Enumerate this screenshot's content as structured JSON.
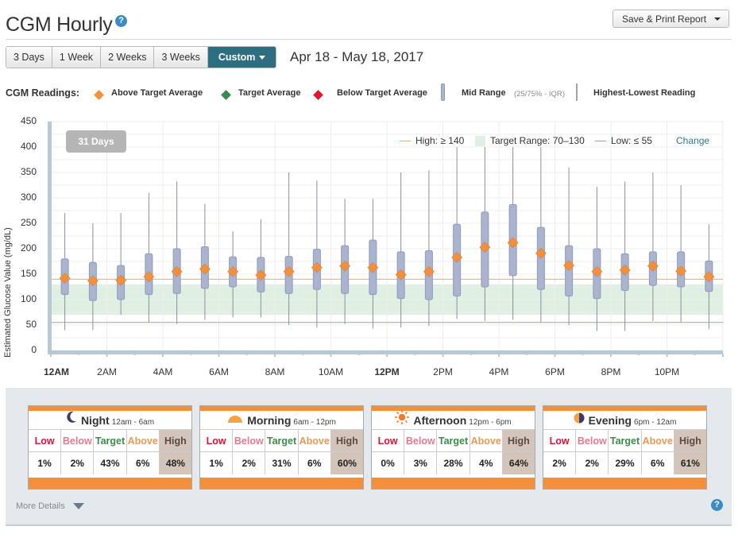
{
  "header": {
    "title": "CGM Hourly",
    "help_icon": "?",
    "print_button_label": "Save & Print Report",
    "date_range": "Apr 18 - May 18, 2017"
  },
  "range_tabs": [
    {
      "label": "3 Days",
      "active": false
    },
    {
      "label": "1 Week",
      "active": false
    },
    {
      "label": "2 Weeks",
      "active": false
    },
    {
      "label": "3 Weeks",
      "active": false
    },
    {
      "label": "Custom",
      "active": true
    }
  ],
  "readings_legend": {
    "title": "CGM Readings:",
    "above": "Above Target Average",
    "target": "Target Average",
    "below": "Below Target Average",
    "mid_range": "Mid Range",
    "mid_range_note": "(25/75% - IQR)",
    "high_low": "Highest-Lowest Reading"
  },
  "chart_overlay": {
    "days_badge": "31 Days",
    "high_label": "High: ≥ 140",
    "target_label": "Target Range: 70–130",
    "low_label": "Low: ≤ 55",
    "change_link": "Change"
  },
  "colors": {
    "above_marker": "#f4903b",
    "target_marker": "#3a8a4e",
    "below_marker": "#e0172e",
    "iqr_box": "#aab4cf",
    "target_band": "#dff0e3",
    "accent": "#2f6e80"
  },
  "chart_data": {
    "type": "box",
    "ylabel": "Estimated Glucose Value (mg/dL)",
    "ylim": [
      0,
      450
    ],
    "y_ticks": [
      "0",
      "50",
      "100",
      "150",
      "200",
      "250",
      "300",
      "350",
      "400",
      "450"
    ],
    "x_ticks": [
      "12AM",
      "2AM",
      "4AM",
      "6AM",
      "8AM",
      "10AM",
      "12PM",
      "2PM",
      "4PM",
      "6PM",
      "8PM",
      "10PM"
    ],
    "bold_x_ticks": [
      "12AM",
      "12PM"
    ],
    "high_threshold": 140,
    "target_range": [
      70,
      130
    ],
    "low_threshold": 55,
    "grid": true,
    "hours": [
      0,
      1,
      2,
      3,
      4,
      5,
      6,
      7,
      8,
      9,
      10,
      11,
      12,
      13,
      14,
      15,
      16,
      17,
      18,
      19,
      20,
      21,
      22,
      23
    ],
    "min": [
      40,
      40,
      70,
      55,
      52,
      60,
      65,
      65,
      50,
      45,
      52,
      43,
      45,
      48,
      62,
      58,
      60,
      55,
      50,
      38,
      38,
      58,
      55,
      42
    ],
    "q1": [
      110,
      98,
      100,
      110,
      112,
      122,
      125,
      115,
      112,
      120,
      112,
      110,
      102,
      100,
      107,
      125,
      147,
      120,
      107,
      102,
      118,
      128,
      125,
      116
    ],
    "avg": [
      142,
      137,
      138,
      145,
      155,
      160,
      155,
      148,
      155,
      163,
      166,
      163,
      149,
      155,
      183,
      203,
      212,
      191,
      167,
      155,
      158,
      166,
      156,
      145
    ],
    "q3": [
      180,
      173,
      167,
      190,
      200,
      204,
      184,
      183,
      185,
      199,
      206,
      217,
      194,
      196,
      248,
      272,
      287,
      242,
      206,
      200,
      190,
      194,
      194,
      176
    ],
    "max": [
      270,
      250,
      270,
      310,
      332,
      288,
      234,
      258,
      350,
      334,
      298,
      298,
      350,
      354,
      400,
      400,
      400,
      400,
      360,
      322,
      332,
      350,
      325,
      248
    ]
  },
  "periods": [
    {
      "name": "Night",
      "hours": "12am - 6am",
      "icon": "moon-icon",
      "low": "1%",
      "below": "2%",
      "target": "43%",
      "above": "6%",
      "high": "48%"
    },
    {
      "name": "Morning",
      "hours": "6am - 12pm",
      "icon": "sunrise-icon",
      "low": "1%",
      "below": "2%",
      "target": "31%",
      "above": "6%",
      "high": "60%"
    },
    {
      "name": "Afternoon",
      "hours": "12pm - 6pm",
      "icon": "sun-icon",
      "low": "0%",
      "below": "3%",
      "target": "28%",
      "above": "4%",
      "high": "64%"
    },
    {
      "name": "Evening",
      "hours": "6pm - 12am",
      "icon": "half-moon-icon",
      "low": "2%",
      "below": "2%",
      "target": "29%",
      "above": "6%",
      "high": "61%"
    }
  ],
  "table_headers": {
    "low": "Low",
    "below": "Below",
    "target": "Target",
    "above": "Above",
    "high": "High"
  },
  "footer": {
    "more_details": "More Details"
  }
}
